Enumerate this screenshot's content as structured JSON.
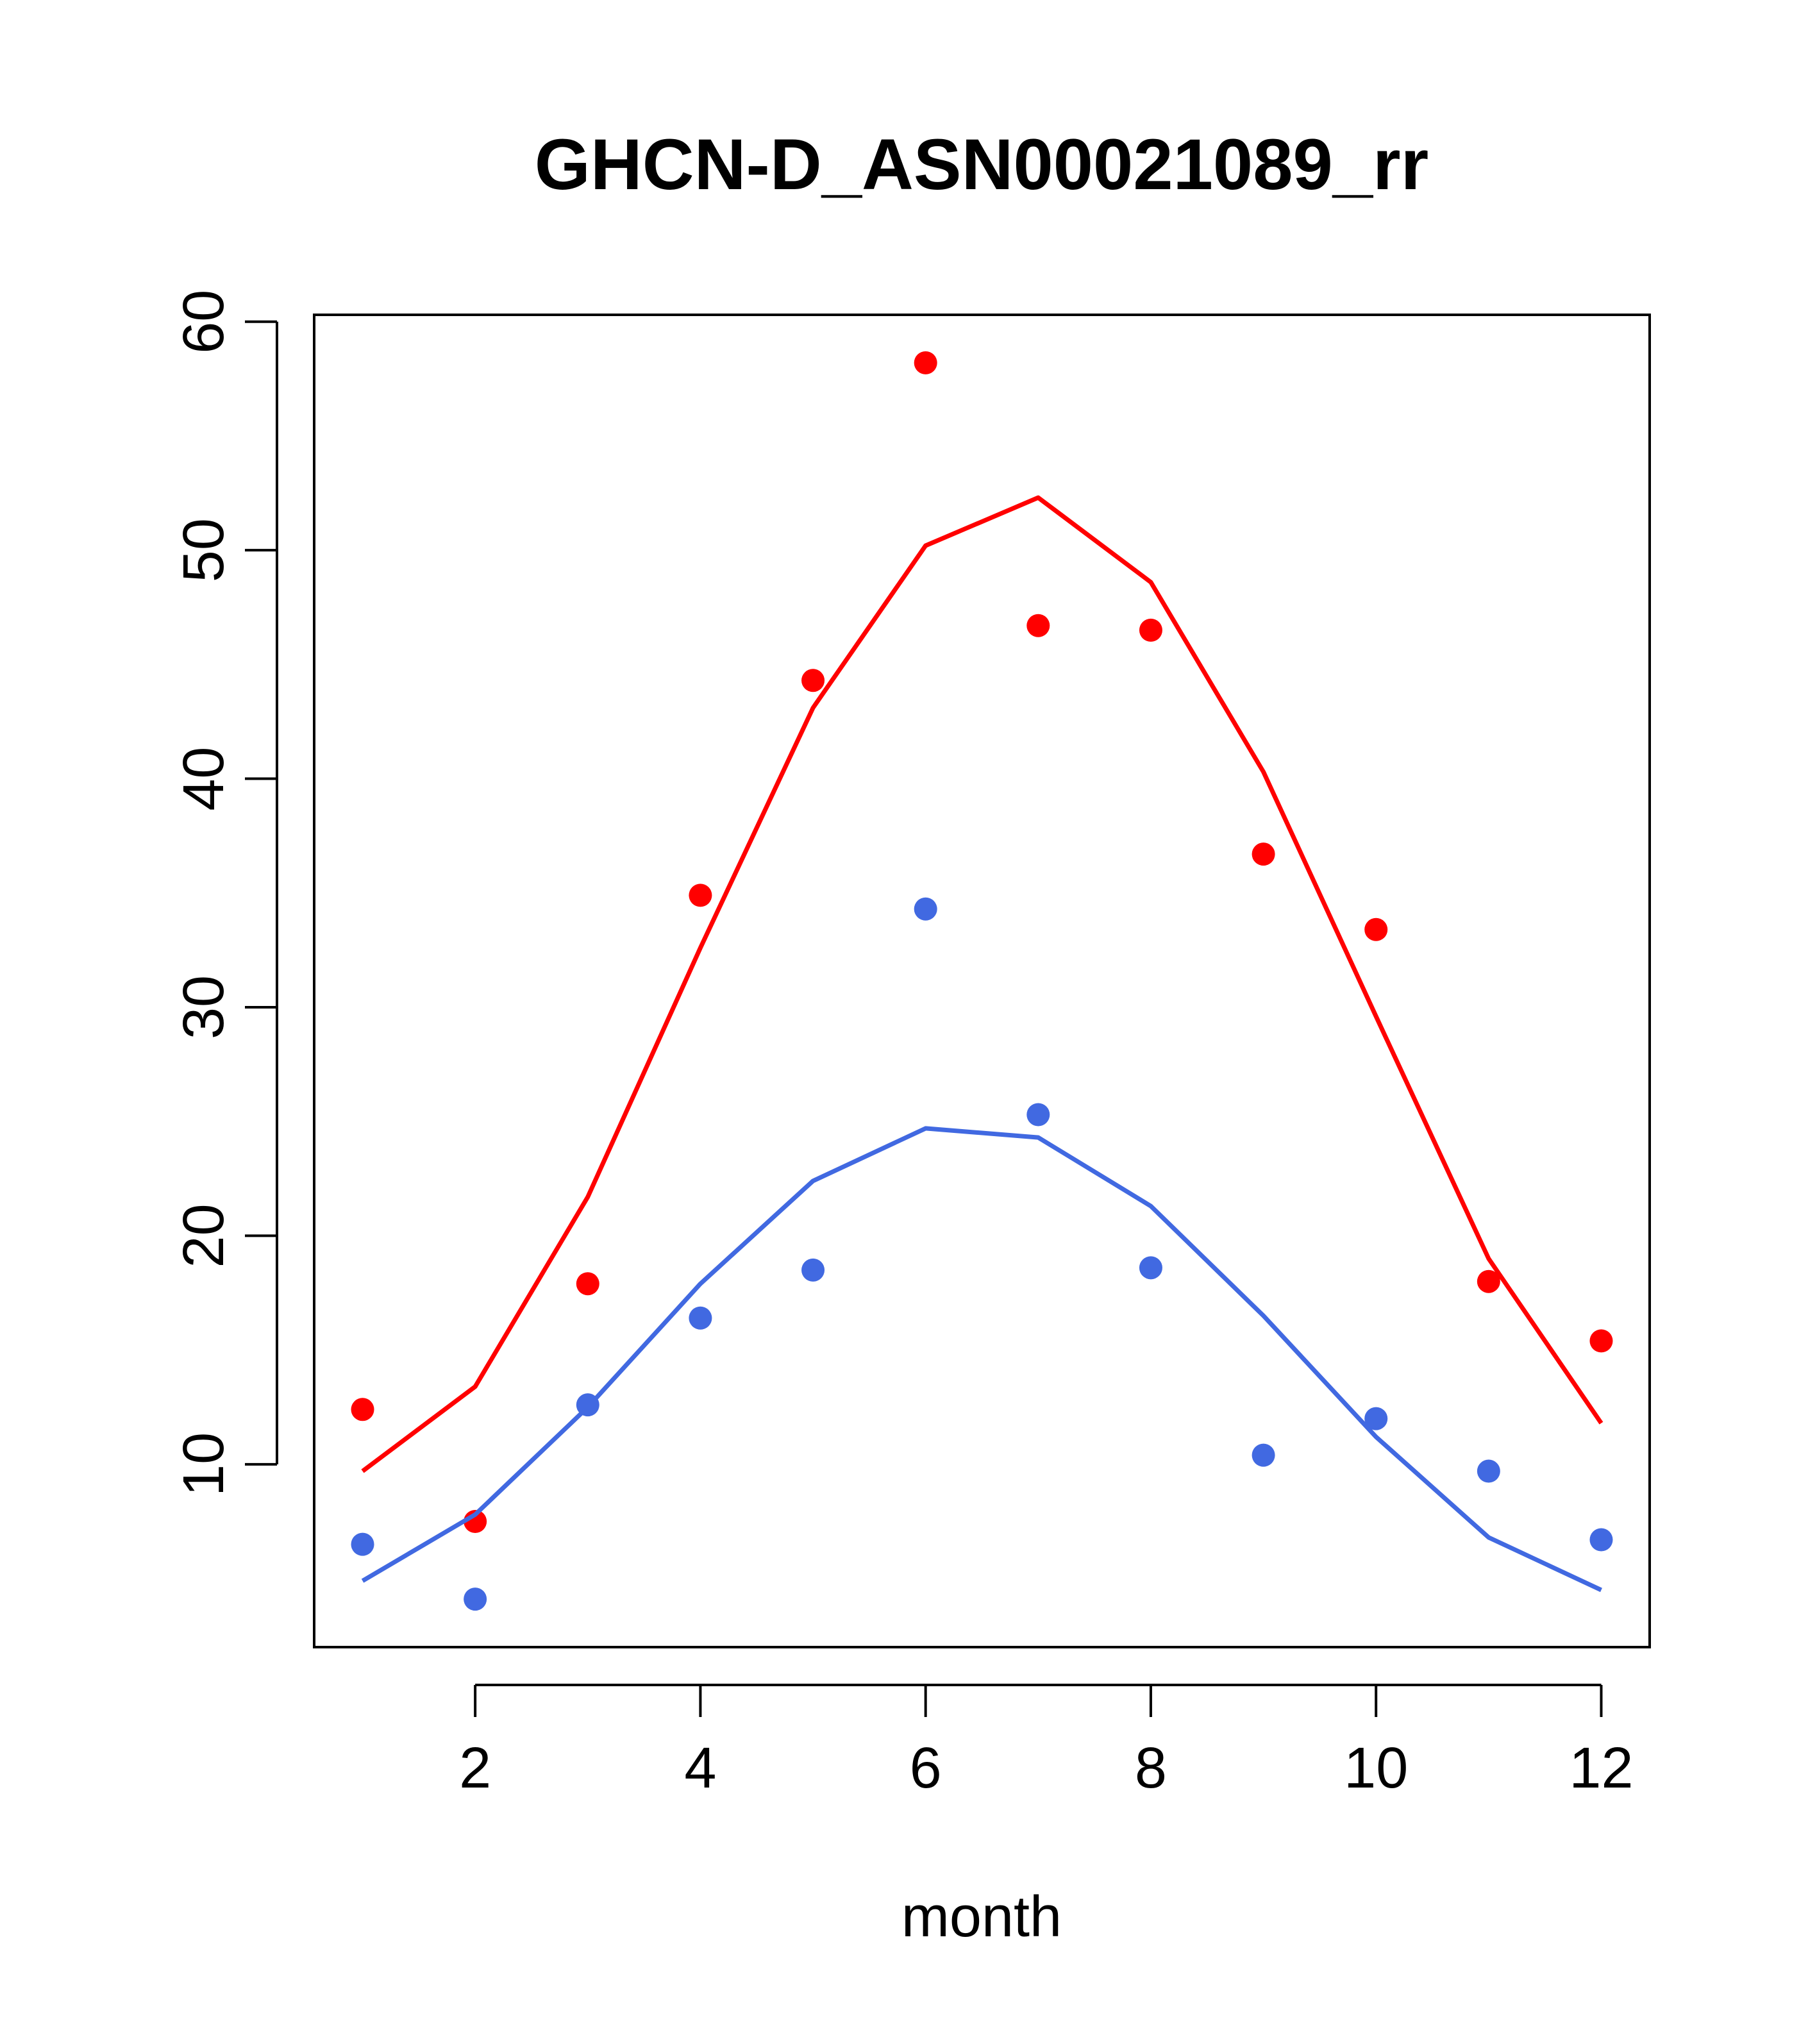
{
  "chart_data": {
    "type": "line",
    "title": "GHCN-D_ASN00021089_rr",
    "xlabel": "month",
    "ylabel": "",
    "xlim": [
      0.57,
      12.43
    ],
    "ylim": [
      2.0,
      60.3
    ],
    "x_ticks": [
      2,
      4,
      6,
      8,
      10,
      12
    ],
    "y_ticks": [
      10,
      20,
      30,
      40,
      50,
      60
    ],
    "grid": false,
    "series": [
      {
        "color": "#ff0000",
        "x": [
          1,
          2,
          3,
          4,
          5,
          6,
          7,
          8,
          9,
          10,
          11,
          12
        ],
        "line": [
          9.7,
          13.4,
          21.7,
          32.6,
          43.1,
          50.2,
          52.3,
          48.6,
          40.3,
          29.6,
          19.0,
          11.8
        ],
        "points": [
          12.4,
          7.5,
          17.9,
          34.9,
          44.3,
          58.2,
          46.7,
          46.5,
          36.7,
          33.4,
          18.0,
          15.4
        ]
      },
      {
        "color": "#4169e1",
        "x": [
          1,
          2,
          3,
          4,
          5,
          6,
          7,
          8,
          9,
          10,
          11,
          12
        ],
        "line": [
          4.9,
          7.8,
          12.5,
          17.9,
          22.4,
          24.7,
          24.3,
          21.3,
          16.5,
          11.2,
          6.8,
          4.5
        ],
        "points": [
          6.5,
          4.1,
          12.6,
          16.4,
          18.5,
          34.3,
          25.3,
          18.6,
          10.4,
          12.0,
          9.7,
          6.7
        ]
      }
    ]
  }
}
